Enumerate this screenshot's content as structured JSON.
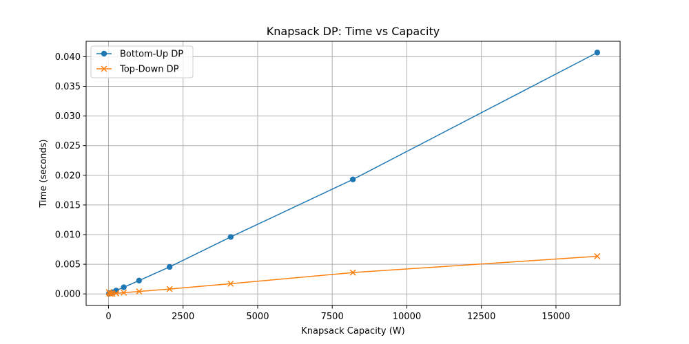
{
  "chart_data": {
    "type": "line",
    "title": "Knapsack DP: Time vs Capacity",
    "xlabel": "Knapsack Capacity (W)",
    "ylabel": "Time (seconds)",
    "xlim": [
      -750,
      17150
    ],
    "ylim": [
      -0.00195,
      0.0426
    ],
    "xticks": [
      0,
      2500,
      5000,
      7500,
      10000,
      12500,
      15000
    ],
    "xtick_labels": [
      "0",
      "2500",
      "5000",
      "7500",
      "10000",
      "12500",
      "15000"
    ],
    "yticks": [
      0.0,
      0.005,
      0.01,
      0.015,
      0.02,
      0.025,
      0.03,
      0.035,
      0.04
    ],
    "ytick_labels": [
      "0.000",
      "0.005",
      "0.010",
      "0.015",
      "0.020",
      "0.025",
      "0.030",
      "0.035",
      "0.040"
    ],
    "grid": true,
    "legend_position": "top-left",
    "x": [
      16,
      32,
      64,
      128,
      256,
      512,
      1024,
      2048,
      4096,
      8192,
      16384
    ],
    "series": [
      {
        "name": "Bottom-Up DP",
        "color": "#1f77b4",
        "marker": "circle",
        "values": [
          5e-05,
          8e-05,
          0.00014,
          0.00028,
          0.00056,
          0.00112,
          0.00225,
          0.00455,
          0.0096,
          0.0193,
          0.0407
        ]
      },
      {
        "name": "Top-Down DP",
        "color": "#ff7f0e",
        "marker": "x",
        "values": [
          0.0003,
          8e-05,
          2e-05,
          5e-05,
          0.0001,
          0.00021,
          0.00042,
          0.00082,
          0.00172,
          0.0036,
          0.00635
        ]
      }
    ]
  }
}
